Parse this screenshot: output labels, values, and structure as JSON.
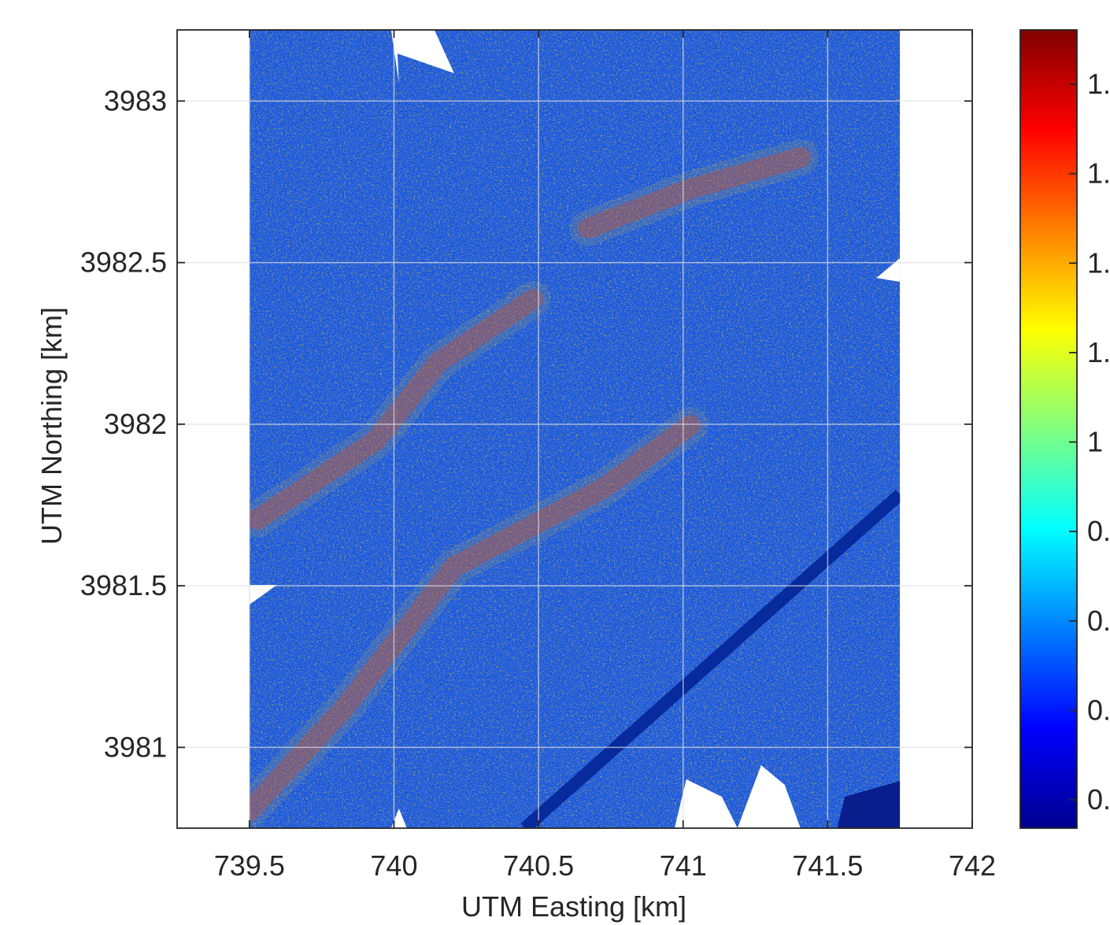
{
  "chart_data": {
    "type": "heatmap",
    "title": "",
    "xlabel": "UTM Easting [km]",
    "ylabel": "UTM Northing [km]",
    "xlim": [
      739.25,
      742
    ],
    "ylim": [
      3980.75,
      3983.22
    ],
    "data_extent": {
      "x": [
        739.5,
        741.75
      ],
      "y": [
        3980.75,
        3983.22
      ]
    },
    "x_ticks": [
      739.5,
      740,
      740.5,
      741,
      741.5,
      742
    ],
    "x_tick_labels": [
      "739.5",
      "740",
      "740.5",
      "741",
      "741.5",
      "742"
    ],
    "y_ticks": [
      3981,
      3981.5,
      3982,
      3982.5,
      3983
    ],
    "y_tick_labels": [
      "3981",
      "3981.5",
      "3982",
      "3982.5",
      "3983"
    ],
    "grid": true,
    "colormap": "jet",
    "colorbar": {
      "position": "right",
      "tick_labels": [
        "1.",
        "1.",
        "1.",
        "1.",
        "1",
        "0.",
        "0.",
        "0.",
        "0."
      ]
    },
    "colors": {
      "background": "#ffffff",
      "axis": "#262626",
      "grid": "#dfdfdf"
    }
  }
}
